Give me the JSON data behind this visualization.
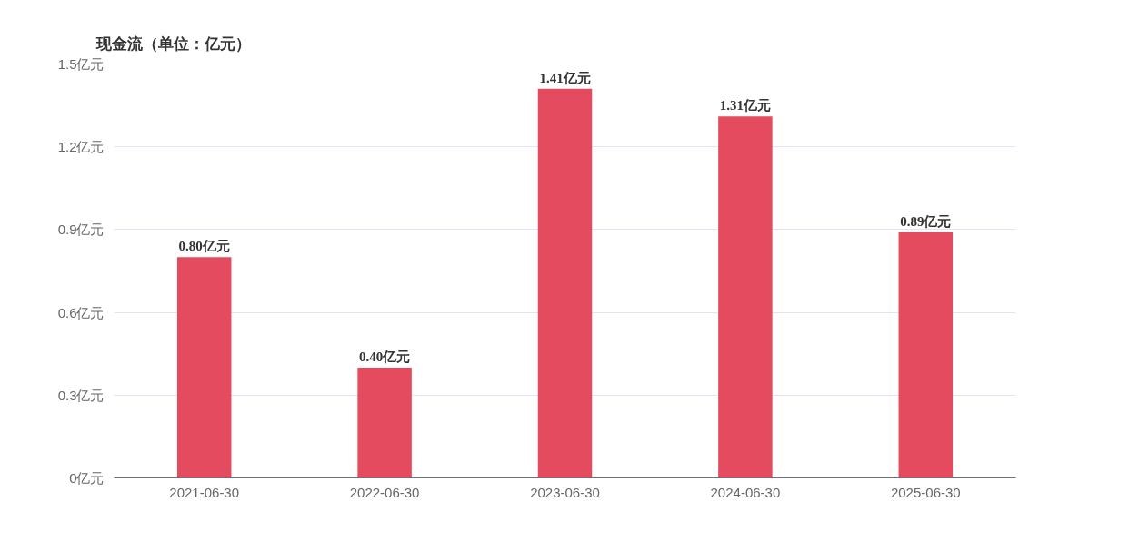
{
  "chart_data": {
    "type": "bar",
    "title": "现金流（单位：亿元）",
    "categories": [
      "2021-06-30",
      "2022-06-30",
      "2023-06-30",
      "2024-06-30",
      "2025-06-30"
    ],
    "values": [
      0.8,
      0.4,
      1.41,
      1.31,
      0.89
    ],
    "value_labels": [
      "0.80亿元",
      "0.40亿元",
      "1.41亿元",
      "1.31亿元",
      "0.89亿元"
    ],
    "color": "#e54b5e",
    "ylim": [
      0,
      1.5
    ],
    "yticks": [
      {
        "value": 0,
        "label": "0亿元"
      },
      {
        "value": 0.3,
        "label": "0.3亿元"
      },
      {
        "value": 0.6,
        "label": "0.6亿元"
      },
      {
        "value": 0.9,
        "label": "0.9亿元"
      },
      {
        "value": 1.2,
        "label": "1.2亿元"
      },
      {
        "value": 1.5,
        "label": "1.5亿元"
      }
    ],
    "grid": "y"
  }
}
